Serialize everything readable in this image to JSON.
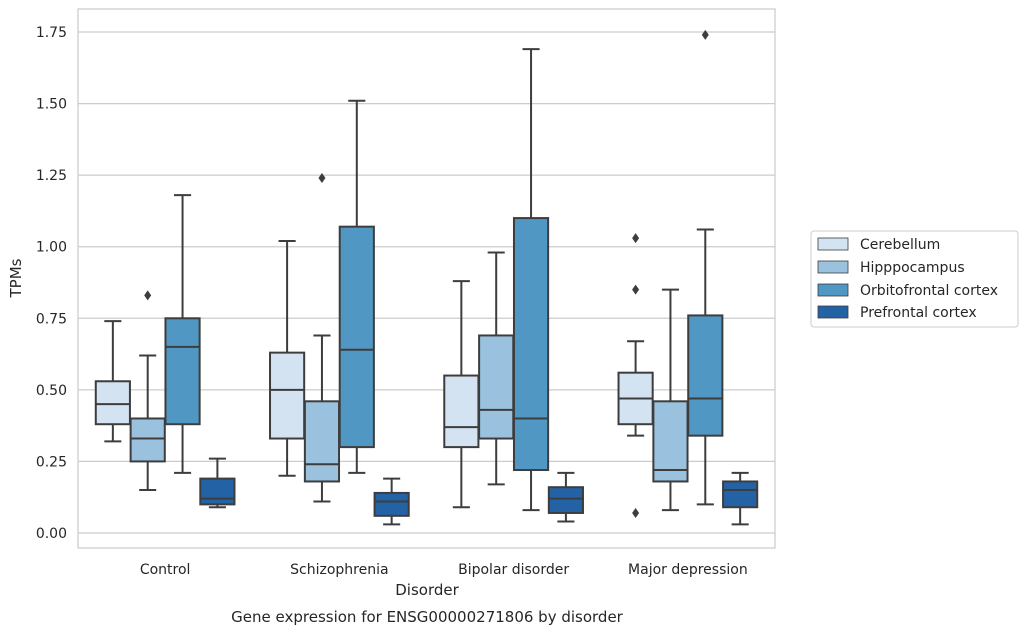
{
  "chart_data": {
    "type": "box",
    "title": "",
    "caption": "Gene expression for ENSG00000271806 by disorder",
    "xlabel": "Disorder",
    "ylabel": "TPMs",
    "ylim": [
      -0.05,
      1.83
    ],
    "yticks": [
      0.0,
      0.25,
      0.5,
      0.75,
      1.0,
      1.25,
      1.5,
      1.75
    ],
    "ytick_labels": [
      "0.00",
      "0.25",
      "0.50",
      "0.75",
      "1.00",
      "1.25",
      "1.50",
      "1.75"
    ],
    "categories": [
      "Control",
      "Schizophrenia",
      "Bipolar disorder",
      "Major depression"
    ],
    "grid": "horizontal",
    "legend_position": "right",
    "series": [
      {
        "name": "Cerebellum",
        "color": "#d3e3f2",
        "boxes": [
          {
            "whislo": 0.32,
            "q1": 0.38,
            "med": 0.45,
            "q3": 0.53,
            "whishi": 0.74,
            "fliers": []
          },
          {
            "whislo": 0.2,
            "q1": 0.33,
            "med": 0.5,
            "q3": 0.63,
            "whishi": 1.02,
            "fliers": []
          },
          {
            "whislo": 0.09,
            "q1": 0.3,
            "med": 0.37,
            "q3": 0.55,
            "whishi": 0.88,
            "fliers": []
          },
          {
            "whislo": 0.34,
            "q1": 0.38,
            "med": 0.47,
            "q3": 0.56,
            "whishi": 0.67,
            "fliers": [
              1.03,
              0.85,
              0.07
            ]
          }
        ]
      },
      {
        "name": "Hipppocampus",
        "color": "#9ac2de",
        "boxes": [
          {
            "whislo": 0.15,
            "q1": 0.25,
            "med": 0.33,
            "q3": 0.4,
            "whishi": 0.62,
            "fliers": [
              0.83
            ]
          },
          {
            "whislo": 0.11,
            "q1": 0.18,
            "med": 0.24,
            "q3": 0.46,
            "whishi": 0.69,
            "fliers": [
              1.24
            ]
          },
          {
            "whislo": 0.17,
            "q1": 0.33,
            "med": 0.43,
            "q3": 0.69,
            "whishi": 0.98,
            "fliers": []
          },
          {
            "whislo": 0.08,
            "q1": 0.18,
            "med": 0.22,
            "q3": 0.46,
            "whishi": 0.85,
            "fliers": []
          }
        ]
      },
      {
        "name": "Orbitofrontal cortex",
        "color": "#5097c3",
        "boxes": [
          {
            "whislo": 0.21,
            "q1": 0.38,
            "med": 0.65,
            "q3": 0.75,
            "whishi": 1.18,
            "fliers": []
          },
          {
            "whislo": 0.21,
            "q1": 0.3,
            "med": 0.64,
            "q3": 1.07,
            "whishi": 1.51,
            "fliers": []
          },
          {
            "whislo": 0.08,
            "q1": 0.22,
            "med": 0.4,
            "q3": 1.1,
            "whishi": 1.69,
            "fliers": []
          },
          {
            "whislo": 0.1,
            "q1": 0.34,
            "med": 0.47,
            "q3": 0.76,
            "whishi": 1.06,
            "fliers": [
              1.74
            ]
          }
        ]
      },
      {
        "name": "Prefrontal cortex",
        "color": "#2462a6",
        "boxes": [
          {
            "whislo": 0.09,
            "q1": 0.1,
            "med": 0.12,
            "q3": 0.19,
            "whishi": 0.26,
            "fliers": []
          },
          {
            "whislo": 0.03,
            "q1": 0.06,
            "med": 0.11,
            "q3": 0.14,
            "whishi": 0.19,
            "fliers": []
          },
          {
            "whislo": 0.04,
            "q1": 0.07,
            "med": 0.12,
            "q3": 0.16,
            "whishi": 0.21,
            "fliers": []
          },
          {
            "whislo": 0.03,
            "q1": 0.09,
            "med": 0.15,
            "q3": 0.18,
            "whishi": 0.21,
            "fliers": []
          }
        ]
      }
    ]
  }
}
